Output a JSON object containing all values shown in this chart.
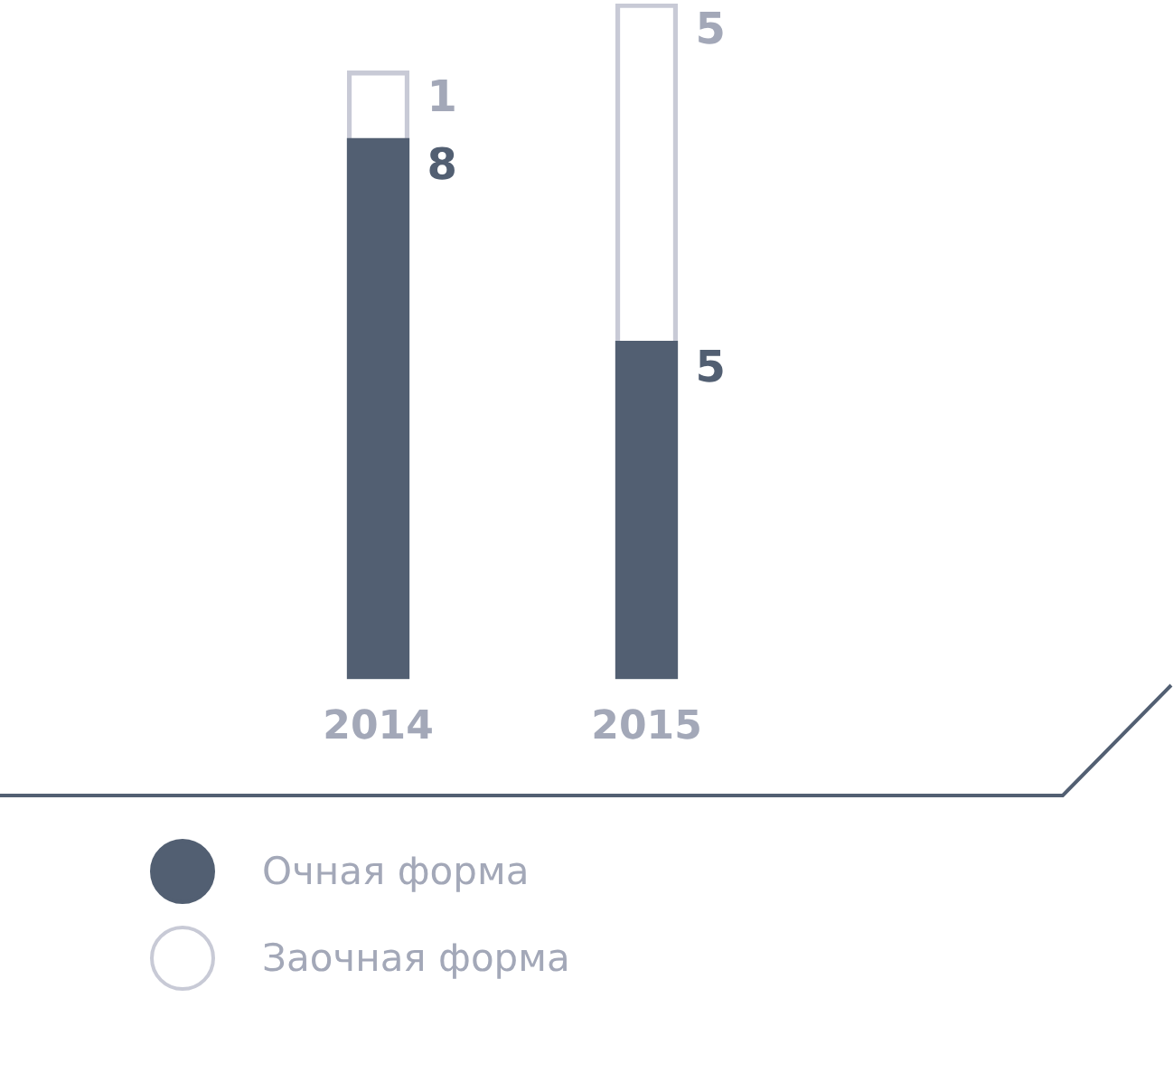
{
  "chart_data": {
    "type": "bar",
    "stacked": true,
    "categories": [
      "2014",
      "2015"
    ],
    "series": [
      {
        "name": "Очная форма",
        "color": "#525f72",
        "values": [
          8,
          5
        ]
      },
      {
        "name": "Заочная форма",
        "color": "#c8cad6",
        "values": [
          1,
          5
        ]
      }
    ],
    "data_labels": true,
    "legend": "bottom left",
    "grid": false
  }
}
